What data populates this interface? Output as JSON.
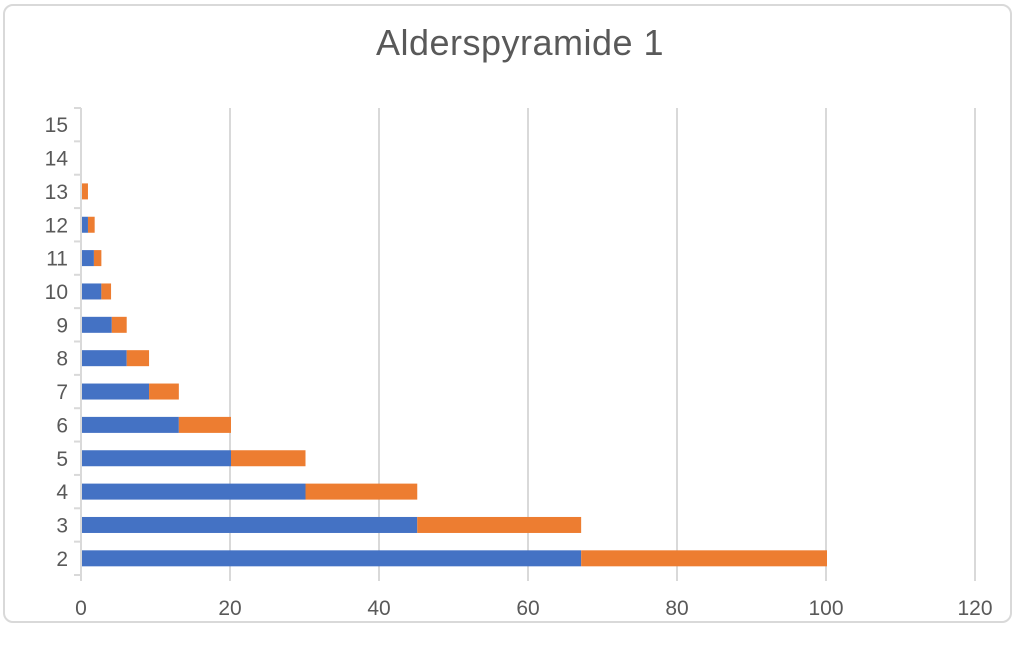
{
  "chart_data": {
    "type": "bar",
    "orientation": "horizontal",
    "stacked": true,
    "title": "Alderspyramide 1",
    "categories": [
      2,
      3,
      4,
      5,
      6,
      7,
      8,
      9,
      10,
      11,
      12,
      13,
      14,
      15
    ],
    "series": [
      {
        "color_key": "blue",
        "values": [
          67,
          45,
          30,
          20,
          13,
          9,
          6,
          4,
          2.6,
          1.6,
          0.8,
          0,
          0,
          0
        ]
      },
      {
        "color_key": "orange",
        "values": [
          33,
          22,
          15,
          10,
          7,
          4,
          3,
          2,
          1.3,
          1.0,
          0.9,
          0.8,
          0,
          0
        ]
      }
    ],
    "xlim": [
      0,
      120
    ],
    "xticks": [
      0,
      20,
      40,
      60,
      80,
      100,
      120
    ],
    "ylabel": "",
    "xlabel": "",
    "grid": "vertical-major",
    "legend": "none"
  },
  "colors": {
    "series_blue": "#4472C4",
    "series_orange": "#ED7D31",
    "grid": "#D9D9D9",
    "axis_text": "#595959",
    "title_text": "#595959",
    "frame_border": "#D9D9D9",
    "background": "#FFFFFF"
  }
}
